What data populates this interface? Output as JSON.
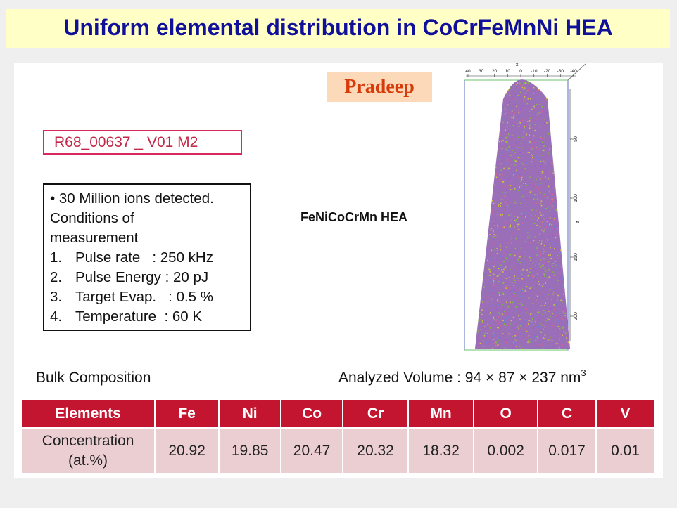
{
  "title": "Uniform elemental distribution in CoCrFeMnNi HEA",
  "author": "Pradeep",
  "run_id": "R68_00637 _ V01 M2",
  "measurement": {
    "line1": "• 30 Million ions detected.",
    "line2": "Conditions of",
    "line3": "measurement",
    "items": [
      {
        "num": "1.",
        "text": "Pulse rate   : 250 kHz"
      },
      {
        "num": "2.",
        "text": "Pulse Energy : 20 pJ"
      },
      {
        "num": "3.",
        "text": "Target Evap.   : 0.5 %"
      },
      {
        "num": "4.",
        "text": "Temperature  : 60 K"
      }
    ]
  },
  "sample_label": "FeNiCoCrMn HEA",
  "bulk_label": "Bulk Composition",
  "volume": {
    "text": "Analyzed Volume : 94 × 87 × 237 nm",
    "sup": "3"
  },
  "reconstruction": {
    "top_ticks": [
      "40",
      "30",
      "20",
      "10",
      "0",
      "-10",
      "-20",
      "-30",
      "-40"
    ],
    "top_axis_label": "x",
    "side_ticks": [
      "50",
      "100",
      "150",
      "200"
    ],
    "side_axis_label": "z",
    "colors": [
      "#a55bd0",
      "#7fbf3a",
      "#d9608f",
      "#6f7fd6",
      "#d5c23a"
    ]
  },
  "table": {
    "headers": [
      "Elements",
      "Fe",
      "Ni",
      "Co",
      "Cr",
      "Mn",
      "O",
      "C",
      "V"
    ],
    "row_label_1": "Concentration",
    "row_label_2": "(at.%)",
    "values": [
      "20.92",
      "19.85",
      "20.47",
      "20.32",
      "18.32",
      "0.002",
      "0.017",
      "0.01"
    ]
  }
}
